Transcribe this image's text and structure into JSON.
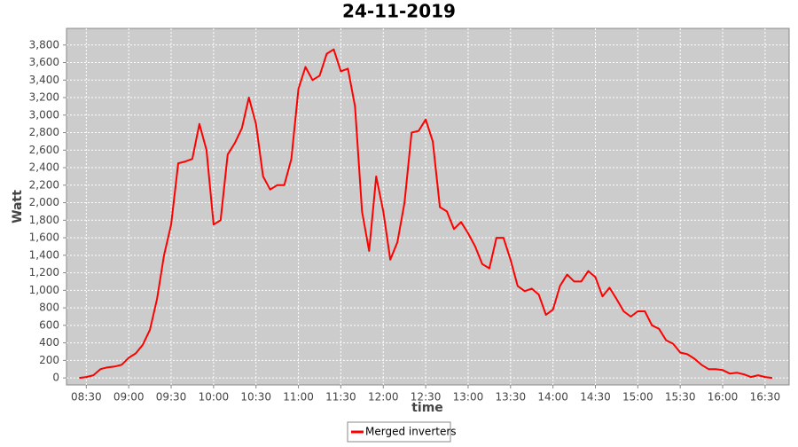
{
  "chart_data": {
    "type": "line",
    "title": "24-11-2019",
    "x_label": "time",
    "y_label": "Watt",
    "x": [
      "08:25",
      "08:30",
      "08:35",
      "08:40",
      "08:45",
      "08:50",
      "08:55",
      "09:00",
      "09:05",
      "09:10",
      "09:15",
      "09:20",
      "09:25",
      "09:30",
      "09:35",
      "09:40",
      "09:45",
      "09:50",
      "09:55",
      "10:00",
      "10:05",
      "10:10",
      "10:15",
      "10:20",
      "10:25",
      "10:30",
      "10:35",
      "10:40",
      "10:45",
      "10:50",
      "10:55",
      "11:00",
      "11:05",
      "11:10",
      "11:15",
      "11:20",
      "11:25",
      "11:30",
      "11:35",
      "11:40",
      "11:45",
      "11:50",
      "11:55",
      "12:00",
      "12:05",
      "12:10",
      "12:15",
      "12:20",
      "12:25",
      "12:30",
      "12:35",
      "12:40",
      "12:45",
      "12:50",
      "12:55",
      "13:00",
      "13:05",
      "13:10",
      "13:15",
      "13:20",
      "13:25",
      "13:30",
      "13:35",
      "13:40",
      "13:45",
      "13:50",
      "13:55",
      "14:00",
      "14:05",
      "14:10",
      "14:15",
      "14:20",
      "14:25",
      "14:30",
      "14:35",
      "14:40",
      "14:45",
      "14:50",
      "14:55",
      "15:00",
      "15:05",
      "15:10",
      "15:15",
      "15:20",
      "15:25",
      "15:30",
      "15:35",
      "15:40",
      "15:45",
      "15:50",
      "15:55",
      "16:00",
      "16:05",
      "16:10",
      "16:15",
      "16:20",
      "16:25",
      "16:30",
      "16:35"
    ],
    "series": [
      {
        "name": "Merged inverters",
        "color": "#ff0000",
        "values": [
          0,
          10,
          30,
          100,
          120,
          130,
          150,
          230,
          280,
          380,
          550,
          900,
          1400,
          1750,
          2450,
          2470,
          2500,
          2900,
          2600,
          1750,
          1800,
          2550,
          2680,
          2850,
          3200,
          2900,
          2300,
          2150,
          2200,
          2200,
          2500,
          3300,
          3550,
          3400,
          3450,
          3700,
          3750,
          3500,
          3530,
          3100,
          1900,
          1450,
          2300,
          1900,
          1350,
          1550,
          2000,
          2800,
          2820,
          2950,
          2700,
          1950,
          1900,
          1700,
          1780,
          1650,
          1500,
          1300,
          1250,
          1600,
          1600,
          1350,
          1050,
          990,
          1020,
          950,
          720,
          780,
          1050,
          1180,
          1100,
          1100,
          1220,
          1150,
          930,
          1030,
          900,
          760,
          700,
          760,
          760,
          600,
          560,
          430,
          390,
          290,
          270,
          220,
          150,
          100,
          100,
          90,
          50,
          60,
          40,
          10,
          30,
          10,
          0
        ]
      }
    ],
    "xlim": [
      "08:16",
      "16:47"
    ],
    "xticks": [
      "08:30",
      "09:00",
      "09:30",
      "10:00",
      "10:30",
      "11:00",
      "11:30",
      "12:00",
      "12:30",
      "13:00",
      "13:30",
      "14:00",
      "14:30",
      "15:00",
      "15:30",
      "16:00",
      "16:30"
    ],
    "ylim": [
      -80,
      3990
    ],
    "yticks": [
      0,
      200,
      400,
      600,
      800,
      {
        "value": 1000,
        "label": "1,000"
      },
      {
        "value": 1200,
        "label": "1,200"
      },
      {
        "value": 1400,
        "label": "1,400"
      },
      {
        "value": 1600,
        "label": "1,600"
      },
      {
        "value": 1800,
        "label": "1,800"
      },
      {
        "value": 2000,
        "label": "2,000"
      },
      {
        "value": 2200,
        "label": "2,200"
      },
      {
        "value": 2400,
        "label": "2,400"
      },
      {
        "value": 2600,
        "label": "2,600"
      },
      {
        "value": 2800,
        "label": "2,800"
      },
      {
        "value": 3000,
        "label": "3,000"
      },
      {
        "value": 3200,
        "label": "3,200"
      },
      {
        "value": 3400,
        "label": "3,400"
      },
      {
        "value": 3600,
        "label": "3,600"
      },
      {
        "value": 3800,
        "label": "3,800"
      }
    ],
    "grid": true
  }
}
